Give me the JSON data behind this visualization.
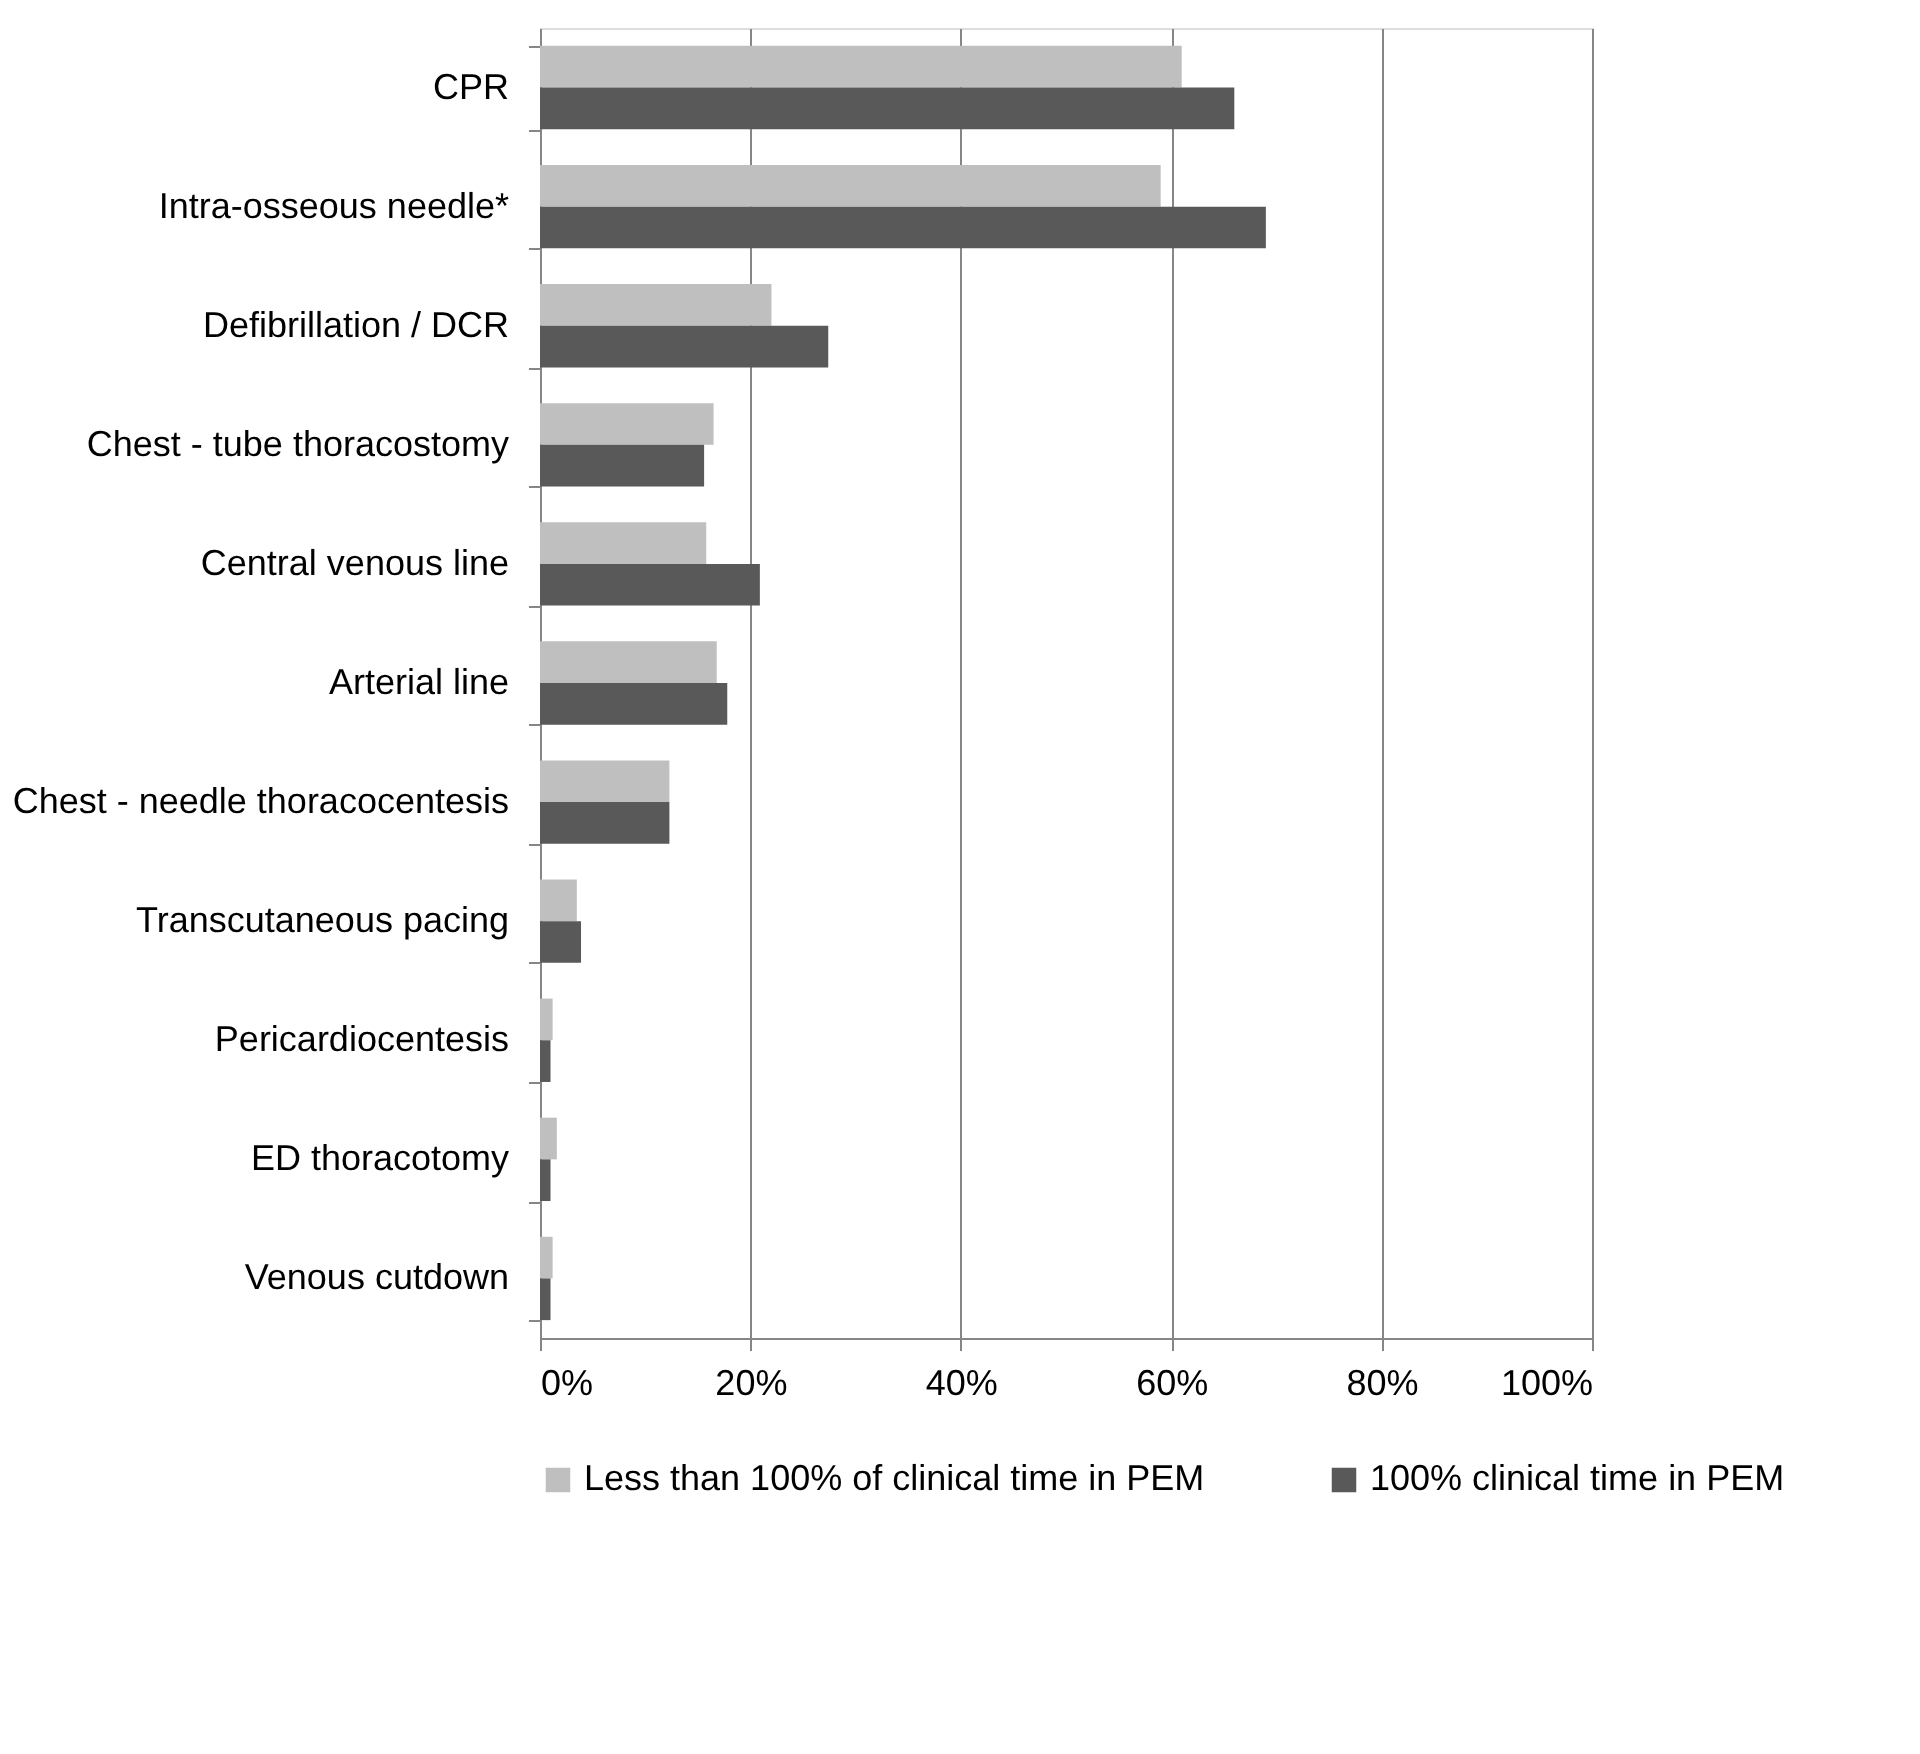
{
  "chart_data": {
    "type": "bar",
    "orientation": "horizontal",
    "categories": [
      "CPR",
      "Intra-osseous needle*",
      "Defibrillation / DCR",
      "Chest - tube thoracostomy",
      "Central venous line",
      "Arterial line",
      "Chest - needle thoracocentesis",
      "Transcutaneous pacing",
      "Pericardiocentesis",
      "ED thoracotomy",
      "Venous cutdown"
    ],
    "series": [
      {
        "name": "Less than 100% of clinical time in PEM",
        "color": "#bfbfbf",
        "values": [
          61,
          59,
          22,
          16.5,
          15.8,
          16.8,
          12.3,
          3.5,
          1.2,
          1.6,
          1.2
        ]
      },
      {
        "name": "100% clinical time in PEM",
        "color": "#595959",
        "values": [
          66,
          69,
          27.4,
          15.6,
          20.9,
          17.8,
          12.3,
          3.9,
          1.0,
          1.0,
          1.0
        ]
      }
    ],
    "xlim": [
      0,
      100
    ],
    "xticks": [
      {
        "value": 0,
        "label": "0%"
      },
      {
        "value": 20,
        "label": "20%"
      },
      {
        "value": 40,
        "label": "40%"
      },
      {
        "value": 60,
        "label": "60%"
      },
      {
        "value": 80,
        "label": "80%"
      },
      {
        "value": 100,
        "label": "100%"
      }
    ],
    "grid": "x",
    "legend": "bottom"
  }
}
